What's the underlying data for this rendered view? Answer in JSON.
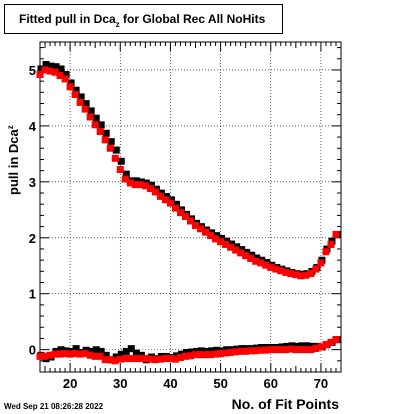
{
  "timestamp": "Wed Sep 21 08:26:28 2022",
  "chart_data": {
    "type": "scatter",
    "title": "Fitted pull in Dca",
    "title_sub": "z",
    "title_rest": " for Global Rec All NoHits",
    "xlabel": "No. of Fit Points",
    "ylabel": "pull in Dca",
    "ylabel_sub": "z",
    "xlim": [
      14,
      74
    ],
    "ylim": [
      -0.4,
      5.5
    ],
    "x_ticks": [
      20,
      30,
      40,
      50,
      60,
      70
    ],
    "y_ticks": [
      0,
      1,
      2,
      3,
      4,
      5
    ],
    "x_tick_labels": [
      "20",
      "30",
      "40",
      "50",
      "60",
      "70"
    ],
    "y_tick_labels": [
      "0",
      "1",
      "2",
      "3",
      "4",
      "5"
    ],
    "grid": true,
    "series": [
      {
        "color": "#000000",
        "marker": "square",
        "x": [
          14,
          15,
          16,
          17,
          18,
          19,
          20,
          21,
          22,
          23,
          24,
          25,
          26,
          27,
          28,
          29,
          30,
          31,
          32,
          33,
          34,
          35,
          36,
          37,
          38,
          39,
          40,
          41,
          42,
          43,
          44,
          45,
          46,
          47,
          48,
          49,
          50,
          51,
          52,
          53,
          54,
          55,
          56,
          57,
          58,
          59,
          60,
          61,
          62,
          63,
          64,
          65,
          66,
          67,
          68,
          69,
          70,
          71,
          72,
          73
        ],
        "y": [
          5.0,
          5.08,
          5.05,
          5.04,
          5.0,
          4.9,
          4.75,
          4.62,
          4.5,
          4.38,
          4.25,
          4.12,
          4.0,
          3.85,
          3.7,
          3.55,
          3.35,
          3.12,
          3.0,
          3.0,
          2.98,
          2.96,
          2.92,
          2.85,
          2.78,
          2.72,
          2.66,
          2.58,
          2.48,
          2.4,
          2.32,
          2.24,
          2.18,
          2.12,
          2.07,
          2.02,
          1.97,
          1.92,
          1.87,
          1.82,
          1.77,
          1.72,
          1.67,
          1.62,
          1.58,
          1.54,
          1.49,
          1.45,
          1.42,
          1.39,
          1.36,
          1.34,
          1.33,
          1.34,
          1.38,
          1.45,
          1.58,
          1.78,
          1.92,
          2.04
        ],
        "y_low": [
          -0.12,
          -0.18,
          -0.15,
          -0.05,
          -0.02,
          -0.04,
          -0.05,
          0.0,
          -0.07,
          -0.03,
          -0.05,
          -0.02,
          -0.05,
          -0.12,
          -0.2,
          -0.15,
          -0.1,
          -0.05,
          0.0,
          -0.08,
          -0.12,
          -0.2,
          -0.15,
          -0.18,
          -0.14,
          -0.14,
          -0.16,
          -0.13,
          -0.1,
          -0.07,
          -0.06,
          -0.05,
          -0.04,
          -0.05,
          -0.04,
          -0.03,
          -0.04,
          -0.02,
          -0.02,
          -0.01,
          0.0,
          0.0,
          0.0,
          0.01,
          0.02,
          0.02,
          0.02,
          0.02,
          0.03,
          0.04,
          0.05,
          0.04,
          0.05,
          0.05,
          0.04,
          0.04,
          0.03,
          0.07,
          0.11,
          0.16
        ]
      },
      {
        "color": "#ff0000",
        "marker": "square",
        "x": [
          14,
          15,
          16,
          17,
          18,
          19,
          20,
          21,
          22,
          23,
          24,
          25,
          26,
          27,
          28,
          29,
          30,
          31,
          32,
          33,
          34,
          35,
          36,
          37,
          38,
          39,
          40,
          41,
          42,
          43,
          44,
          45,
          46,
          47,
          48,
          49,
          50,
          51,
          52,
          53,
          54,
          55,
          56,
          57,
          58,
          59,
          60,
          61,
          62,
          63,
          64,
          65,
          66,
          67,
          68,
          69,
          70,
          71,
          72,
          73
        ],
        "y": [
          4.92,
          5.0,
          4.98,
          4.96,
          4.9,
          4.84,
          4.7,
          4.56,
          4.42,
          4.3,
          4.16,
          4.02,
          3.9,
          3.75,
          3.6,
          3.42,
          3.22,
          3.05,
          2.98,
          2.95,
          2.95,
          2.93,
          2.88,
          2.82,
          2.74,
          2.68,
          2.62,
          2.53,
          2.45,
          2.38,
          2.3,
          2.22,
          2.16,
          2.1,
          2.04,
          1.98,
          1.93,
          1.88,
          1.83,
          1.78,
          1.73,
          1.68,
          1.63,
          1.58,
          1.55,
          1.51,
          1.47,
          1.44,
          1.41,
          1.38,
          1.36,
          1.34,
          1.32,
          1.33,
          1.36,
          1.44,
          1.55,
          1.75,
          1.88,
          2.06
        ],
        "y_low": [
          -0.12,
          -0.12,
          -0.1,
          -0.08,
          -0.08,
          -0.07,
          -0.08,
          -0.07,
          -0.08,
          -0.07,
          -0.1,
          -0.12,
          -0.12,
          -0.18,
          -0.18,
          -0.2,
          -0.17,
          -0.16,
          -0.16,
          -0.16,
          -0.16,
          -0.16,
          -0.17,
          -0.18,
          -0.17,
          -0.16,
          -0.16,
          -0.17,
          -0.14,
          -0.12,
          -0.11,
          -0.09,
          -0.09,
          -0.09,
          -0.09,
          -0.08,
          -0.07,
          -0.06,
          -0.05,
          -0.04,
          -0.03,
          -0.03,
          -0.02,
          -0.02,
          -0.01,
          -0.01,
          0.0,
          0.0,
          0.0,
          0.0,
          0.01,
          0.0,
          0.0,
          0.0,
          0.0,
          0.02,
          0.05,
          0.09,
          0.13,
          0.18
        ]
      }
    ]
  }
}
